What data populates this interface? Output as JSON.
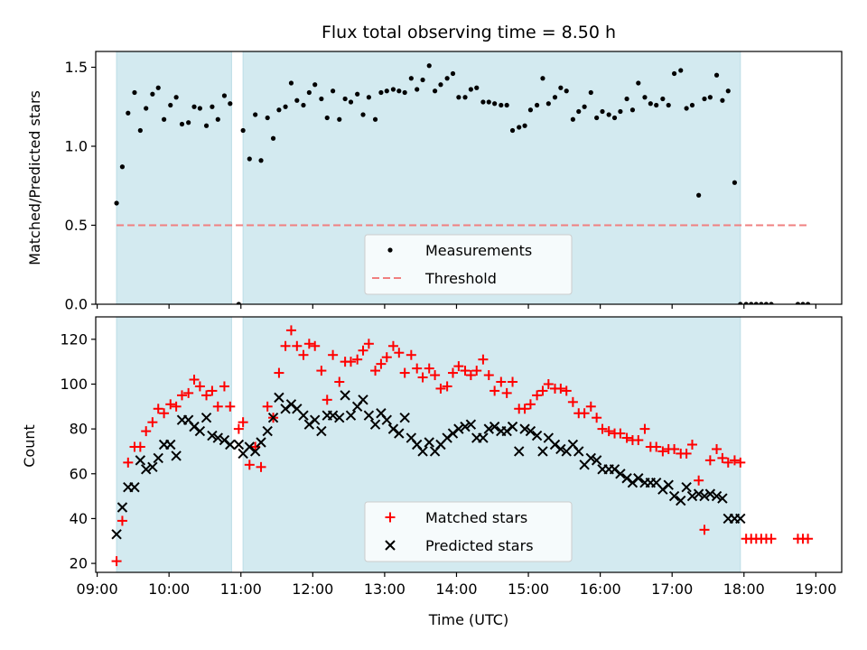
{
  "chart_data": {
    "title": "Flux total observing time = 8.50 h",
    "xlabel": "Time (UTC)",
    "x_unit": "hours UTC",
    "xlim": [
      8.98,
      19.36
    ],
    "x_ticks": [
      9,
      10,
      11,
      12,
      13,
      14,
      15,
      16,
      17,
      18,
      19
    ],
    "x_tick_labels": [
      "09:00",
      "10:00",
      "11:00",
      "12:00",
      "13:00",
      "14:00",
      "15:00",
      "16:00",
      "17:00",
      "18:00",
      "19:00"
    ],
    "observing_windows": [
      [
        9.27,
        10.87
      ],
      [
        11.03,
        17.95
      ]
    ],
    "window_color": "#d3eaf0",
    "panels": [
      {
        "type": "scatter",
        "ylabel": "Matched/Predicted stars",
        "ylim": [
          0,
          1.6
        ],
        "y_ticks": [
          0,
          0.5,
          1.0,
          1.5
        ],
        "y_tick_labels": [
          "0.0",
          "0.5",
          "1.0",
          "1.5"
        ],
        "threshold": {
          "value": 0.5,
          "x_range": [
            9.27,
            18.87
          ],
          "color": "#f08080"
        },
        "legend": {
          "placement": "lower center",
          "entries": [
            "Measurements",
            "Threshold"
          ]
        },
        "series": [
          {
            "name": "Measurements",
            "color": "#000000",
            "marker": "dot",
            "x": [
              9.27,
              9.35,
              9.43,
              9.52,
              9.6,
              9.68,
              9.77,
              9.85,
              9.93,
              10.02,
              10.1,
              10.18,
              10.27,
              10.35,
              10.43,
              10.52,
              10.6,
              10.68,
              10.77,
              10.85,
              10.97,
              11.03,
              11.12,
              11.2,
              11.28,
              11.37,
              11.45,
              11.53,
              11.62,
              11.7,
              11.78,
              11.87,
              11.95,
              12.03,
              12.12,
              12.2,
              12.28,
              12.37,
              12.45,
              12.53,
              12.62,
              12.7,
              12.78,
              12.87,
              12.95,
              13.03,
              13.12,
              13.2,
              13.28,
              13.37,
              13.45,
              13.53,
              13.62,
              13.7,
              13.78,
              13.87,
              13.95,
              14.03,
              14.12,
              14.2,
              14.28,
              14.37,
              14.45,
              14.53,
              14.62,
              14.7,
              14.78,
              14.87,
              14.95,
              15.03,
              15.12,
              15.2,
              15.28,
              15.37,
              15.45,
              15.53,
              15.62,
              15.7,
              15.78,
              15.87,
              15.95,
              16.03,
              16.12,
              16.2,
              16.28,
              16.37,
              16.45,
              16.53,
              16.62,
              16.7,
              16.78,
              16.87,
              16.95,
              17.03,
              17.12,
              17.2,
              17.28,
              17.37,
              17.45,
              17.53,
              17.62,
              17.7,
              17.78,
              17.87,
              17.95,
              18.03,
              18.1,
              18.17,
              18.24,
              18.31,
              18.38,
              18.75,
              18.82,
              18.89
            ],
            "y": [
              0.64,
              0.87,
              1.21,
              1.34,
              1.1,
              1.24,
              1.33,
              1.37,
              1.17,
              1.26,
              1.31,
              1.14,
              1.15,
              1.25,
              1.24,
              1.13,
              1.25,
              1.17,
              1.32,
              1.27,
              0.0,
              1.1,
              0.92,
              1.2,
              0.91,
              1.18,
              1.05,
              1.23,
              1.25,
              1.4,
              1.29,
              1.26,
              1.34,
              1.39,
              1.3,
              1.18,
              1.35,
              1.17,
              1.3,
              1.28,
              1.33,
              1.2,
              1.31,
              1.17,
              1.34,
              1.35,
              1.36,
              1.35,
              1.34,
              1.43,
              1.36,
              1.42,
              1.51,
              1.35,
              1.39,
              1.43,
              1.46,
              1.31,
              1.31,
              1.36,
              1.37,
              1.28,
              1.28,
              1.27,
              1.26,
              1.26,
              1.1,
              1.12,
              1.13,
              1.23,
              1.26,
              1.43,
              1.27,
              1.31,
              1.37,
              1.35,
              1.17,
              1.22,
              1.25,
              1.34,
              1.18,
              1.22,
              1.2,
              1.18,
              1.22,
              1.3,
              1.23,
              1.4,
              1.31,
              1.27,
              1.26,
              1.3,
              1.26,
              1.46,
              1.48,
              1.24,
              1.26,
              0.69,
              1.3,
              1.31,
              1.45,
              1.29,
              1.35,
              0.77,
              0.0,
              0.0,
              0.0,
              0.0,
              0.0,
              0.0,
              0.0,
              0.0,
              0.0,
              0.0
            ]
          }
        ]
      },
      {
        "type": "scatter",
        "ylabel": "Count",
        "ylim": [
          16,
          130
        ],
        "y_ticks": [
          20,
          40,
          60,
          80,
          100,
          120
        ],
        "y_tick_labels": [
          "20",
          "40",
          "60",
          "80",
          "100",
          "120"
        ],
        "legend": {
          "placement": "lower center",
          "entries": [
            "Matched stars",
            "Predicted stars"
          ]
        },
        "series": [
          {
            "name": "Matched stars",
            "color": "#ff0000",
            "marker": "plus",
            "x": [
              9.27,
              9.35,
              9.43,
              9.52,
              9.6,
              9.68,
              9.77,
              9.85,
              9.93,
              10.02,
              10.1,
              10.18,
              10.27,
              10.35,
              10.43,
              10.52,
              10.6,
              10.68,
              10.77,
              10.85,
              10.97,
              11.03,
              11.12,
              11.2,
              11.28,
              11.37,
              11.45,
              11.53,
              11.62,
              11.7,
              11.78,
              11.87,
              11.95,
              12.03,
              12.12,
              12.2,
              12.28,
              12.37,
              12.45,
              12.53,
              12.62,
              12.7,
              12.78,
              12.87,
              12.95,
              13.03,
              13.12,
              13.2,
              13.28,
              13.37,
              13.45,
              13.53,
              13.62,
              13.7,
              13.78,
              13.87,
              13.95,
              14.03,
              14.12,
              14.2,
              14.28,
              14.37,
              14.45,
              14.53,
              14.62,
              14.7,
              14.78,
              14.87,
              14.95,
              15.03,
              15.12,
              15.2,
              15.28,
              15.37,
              15.45,
              15.53,
              15.62,
              15.7,
              15.78,
              15.87,
              15.95,
              16.03,
              16.12,
              16.2,
              16.28,
              16.37,
              16.45,
              16.53,
              16.62,
              16.7,
              16.78,
              16.87,
              16.95,
              17.03,
              17.12,
              17.2,
              17.28,
              17.37,
              17.45,
              17.53,
              17.62,
              17.7,
              17.78,
              17.87,
              17.95,
              18.03,
              18.1,
              18.17,
              18.24,
              18.31,
              18.38,
              18.75,
              18.82,
              18.89
            ],
            "y": [
              21,
              39,
              65,
              72,
              72,
              79,
              83,
              89,
              87,
              91,
              90,
              95,
              96,
              102,
              99,
              95,
              97,
              90,
              99,
              90,
              80,
              83,
              64,
              72,
              63,
              90,
              85,
              105,
              117,
              124,
              117,
              113,
              118,
              117,
              106,
              93,
              113,
              101,
              110,
              110,
              111,
              115,
              118,
              106,
              109,
              112,
              117,
              114,
              105,
              113,
              107,
              103,
              107,
              104,
              98,
              99,
              105,
              108,
              106,
              104,
              106,
              111,
              104,
              97,
              101,
              96,
              101,
              89,
              89,
              91,
              95,
              97,
              100,
              98,
              98,
              97,
              92,
              87,
              87,
              90,
              85,
              80,
              79,
              78,
              78,
              76,
              75,
              75,
              80,
              72,
              72,
              70,
              71,
              71,
              69,
              69,
              73,
              57,
              35,
              66,
              71,
              67,
              65,
              66,
              65,
              31,
              31,
              31,
              31,
              31,
              31,
              31,
              31,
              31
            ]
          },
          {
            "name": "Predicted stars",
            "color": "#000000",
            "marker": "x",
            "x": [
              9.27,
              9.35,
              9.43,
              9.52,
              9.6,
              9.68,
              9.77,
              9.85,
              9.93,
              10.02,
              10.1,
              10.18,
              10.27,
              10.35,
              10.43,
              10.52,
              10.6,
              10.68,
              10.77,
              10.85,
              10.97,
              11.03,
              11.12,
              11.2,
              11.28,
              11.37,
              11.45,
              11.53,
              11.62,
              11.7,
              11.78,
              11.87,
              11.95,
              12.03,
              12.12,
              12.2,
              12.28,
              12.37,
              12.45,
              12.53,
              12.62,
              12.7,
              12.78,
              12.87,
              12.95,
              13.03,
              13.12,
              13.2,
              13.28,
              13.37,
              13.45,
              13.53,
              13.62,
              13.7,
              13.78,
              13.87,
              13.95,
              14.03,
              14.12,
              14.2,
              14.28,
              14.37,
              14.45,
              14.53,
              14.62,
              14.7,
              14.78,
              14.87,
              14.95,
              15.03,
              15.12,
              15.2,
              15.28,
              15.37,
              15.45,
              15.53,
              15.62,
              15.7,
              15.78,
              15.87,
              15.95,
              16.03,
              16.12,
              16.2,
              16.28,
              16.37,
              16.45,
              16.53,
              16.62,
              16.7,
              16.78,
              16.87,
              16.95,
              17.03,
              17.12,
              17.2,
              17.28,
              17.37,
              17.45,
              17.53,
              17.62,
              17.7,
              17.78,
              17.87,
              17.95
            ],
            "y": [
              33,
              45,
              54,
              54,
              66,
              62,
              63,
              67,
              73,
              73,
              68,
              84,
              84,
              81,
              79,
              85,
              77,
              76,
              75,
              73,
              73,
              69,
              72,
              70,
              74,
              79,
              85,
              94,
              89,
              91,
              89,
              86,
              82,
              84,
              79,
              86,
              86,
              85,
              95,
              86,
              90,
              93,
              86,
              82,
              87,
              84,
              80,
              78,
              85,
              76,
              73,
              70,
              74,
              70,
              73,
              76,
              78,
              80,
              81,
              82,
              76,
              76,
              80,
              81,
              79,
              79,
              81,
              70,
              80,
              79,
              77,
              70,
              76,
              73,
              71,
              70,
              73,
              70,
              64,
              67,
              66,
              62,
              62,
              62,
              60,
              58,
              56,
              58,
              56,
              56,
              56,
              53,
              55,
              50,
              48,
              54,
              50,
              51,
              50,
              51,
              50,
              49,
              40,
              40,
              40
            ]
          }
        ]
      }
    ]
  }
}
